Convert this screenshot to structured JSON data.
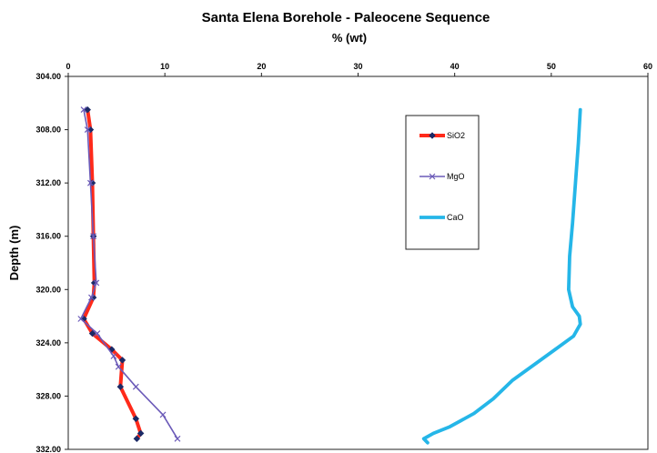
{
  "chart_data": {
    "type": "line",
    "title": "Santa Elena Borehole - Paleocene Sequence",
    "xlabel": "% (wt)",
    "ylabel": "Depth (m)",
    "xlim": [
      0,
      60
    ],
    "ylim": [
      304,
      332
    ],
    "y_inverted": true,
    "x_axis_position": "top",
    "grid": false,
    "legend_position": "upper-right-inside",
    "x_ticks": [
      "0",
      "10",
      "20",
      "30",
      "40",
      "50",
      "60"
    ],
    "y_ticks": [
      "304.00",
      "308.00",
      "312.00",
      "316.00",
      "320.00",
      "324.00",
      "328.00",
      "332.00"
    ],
    "series": [
      {
        "name": "SiO2",
        "color": "#ff2a1a",
        "marker": "diamond",
        "points": [
          [
            2.0,
            306.5
          ],
          [
            2.3,
            308.0
          ],
          [
            2.5,
            312.0
          ],
          [
            2.6,
            316.0
          ],
          [
            2.7,
            319.5
          ],
          [
            2.6,
            320.6
          ],
          [
            1.6,
            322.2
          ],
          [
            2.5,
            323.3
          ],
          [
            4.5,
            324.5
          ],
          [
            5.6,
            325.3
          ],
          [
            5.4,
            327.3
          ],
          [
            7.0,
            329.7
          ],
          [
            7.5,
            330.8
          ],
          [
            7.1,
            331.2
          ]
        ]
      },
      {
        "name": "MgO",
        "color": "#6b5ab8",
        "marker": "x",
        "points": [
          [
            1.6,
            306.5
          ],
          [
            2.0,
            308.0
          ],
          [
            2.3,
            312.0
          ],
          [
            2.6,
            316.0
          ],
          [
            2.9,
            319.5
          ],
          [
            2.4,
            320.6
          ],
          [
            1.3,
            322.2
          ],
          [
            3.0,
            323.3
          ],
          [
            4.7,
            325.0
          ],
          [
            5.2,
            325.8
          ],
          [
            7.0,
            327.3
          ],
          [
            9.8,
            329.4
          ],
          [
            11.3,
            331.2
          ]
        ]
      },
      {
        "name": "CaO",
        "color": "#25b6e8",
        "marker": "none",
        "points": [
          [
            53.0,
            306.5
          ],
          [
            52.8,
            309.0
          ],
          [
            52.5,
            312.0
          ],
          [
            52.2,
            315.0
          ],
          [
            51.9,
            317.5
          ],
          [
            51.8,
            320.0
          ],
          [
            52.2,
            321.3
          ],
          [
            52.9,
            322.0
          ],
          [
            53.0,
            322.6
          ],
          [
            52.3,
            323.5
          ],
          [
            50.4,
            324.5
          ],
          [
            48.5,
            325.5
          ],
          [
            46.0,
            326.8
          ],
          [
            44.0,
            328.2
          ],
          [
            42.0,
            329.3
          ],
          [
            39.5,
            330.3
          ],
          [
            37.8,
            330.8
          ],
          [
            36.8,
            331.2
          ],
          [
            37.2,
            331.5
          ]
        ]
      }
    ]
  }
}
